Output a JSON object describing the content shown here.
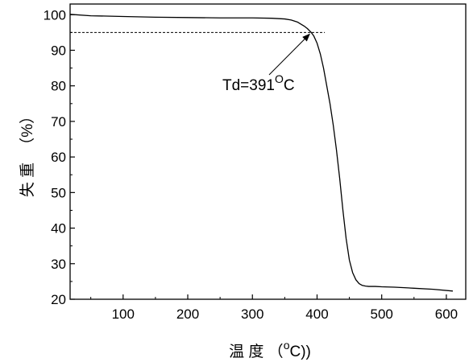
{
  "chart_data": {
    "type": "line",
    "title": "",
    "xlabel": "温 度 （°C)）",
    "ylabel": "失 重 （%）",
    "xlabel_parts": {
      "prefix": "温 度 （",
      "sup": "o",
      "suffix": "C))"
    },
    "ylabel_parts": {
      "prefix": "失 重",
      "suffix": "（%）"
    },
    "xlim": [
      18,
      630
    ],
    "ylim": [
      20,
      103
    ],
    "x_ticks": [
      100,
      200,
      300,
      400,
      500,
      600
    ],
    "y_ticks": [
      20,
      30,
      40,
      50,
      60,
      70,
      80,
      90,
      100
    ],
    "series": [
      {
        "x": [
          18,
          50,
          100,
          150,
          200,
          250,
          300,
          330,
          350,
          360,
          370,
          380,
          385,
          391,
          395,
          400,
          405,
          410,
          415,
          420,
          425,
          430,
          435,
          440,
          445,
          450,
          455,
          460,
          465,
          470,
          475,
          480,
          490,
          500,
          520,
          550,
          580,
          610
        ],
        "y": [
          100.1,
          99.7,
          99.5,
          99.3,
          99.2,
          99.1,
          99.1,
          99.0,
          98.8,
          98.5,
          97.9,
          96.8,
          96.1,
          95.0,
          94.0,
          92.0,
          89.0,
          85.0,
          80.0,
          75.0,
          69.0,
          62.0,
          54.0,
          45.0,
          37.0,
          31.0,
          27.5,
          25.5,
          24.4,
          23.9,
          23.7,
          23.6,
          23.6,
          23.5,
          23.4,
          23.1,
          22.8,
          22.3
        ],
        "color": "#000000"
      }
    ],
    "reference_line": {
      "y": 95,
      "x_start": 18,
      "x_end": 412,
      "style": "dashed"
    },
    "annotation": {
      "text_prefix": "Td=391",
      "text_sup": "O",
      "text_suffix": "C",
      "arrow_to": {
        "x": 391,
        "y": 95
      }
    }
  }
}
